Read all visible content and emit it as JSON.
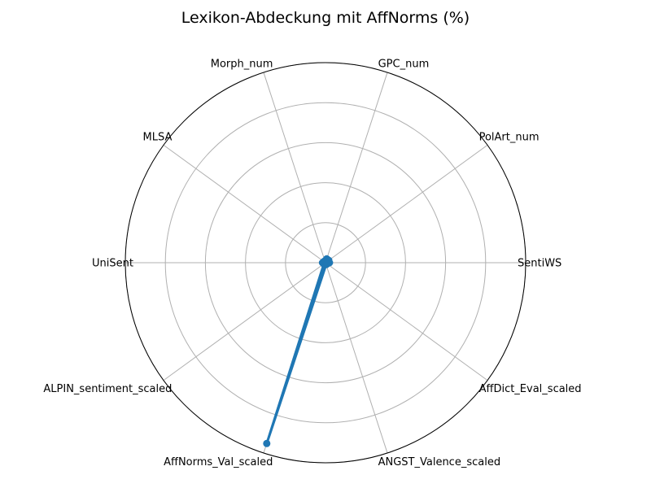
{
  "chart_data": {
    "type": "radar",
    "title": "Lexikon-Abdeckung mit AffNorms (%)",
    "categories": [
      "SentiWS",
      "PolArt_num",
      "GPC_num",
      "Morph_num",
      "MLSA",
      "UniSent",
      "ALPIN_sentiment_scaled",
      "AffNorms_Val_scaled",
      "ANGST_Valence_scaled",
      "AffDict_Eval_scaled"
    ],
    "series": [
      {
        "values": [
          2.0,
          2.0,
          2.0,
          1.0,
          1.0,
          1.5,
          1.0,
          95.0,
          1.0,
          1.0
        ]
      }
    ],
    "rlim": [
      0,
      100
    ],
    "rgrid": [
      20,
      40,
      60,
      80,
      100
    ],
    "grid": true,
    "colors": {
      "series": "#1f77b4",
      "grid": "#b0b0b0"
    }
  }
}
